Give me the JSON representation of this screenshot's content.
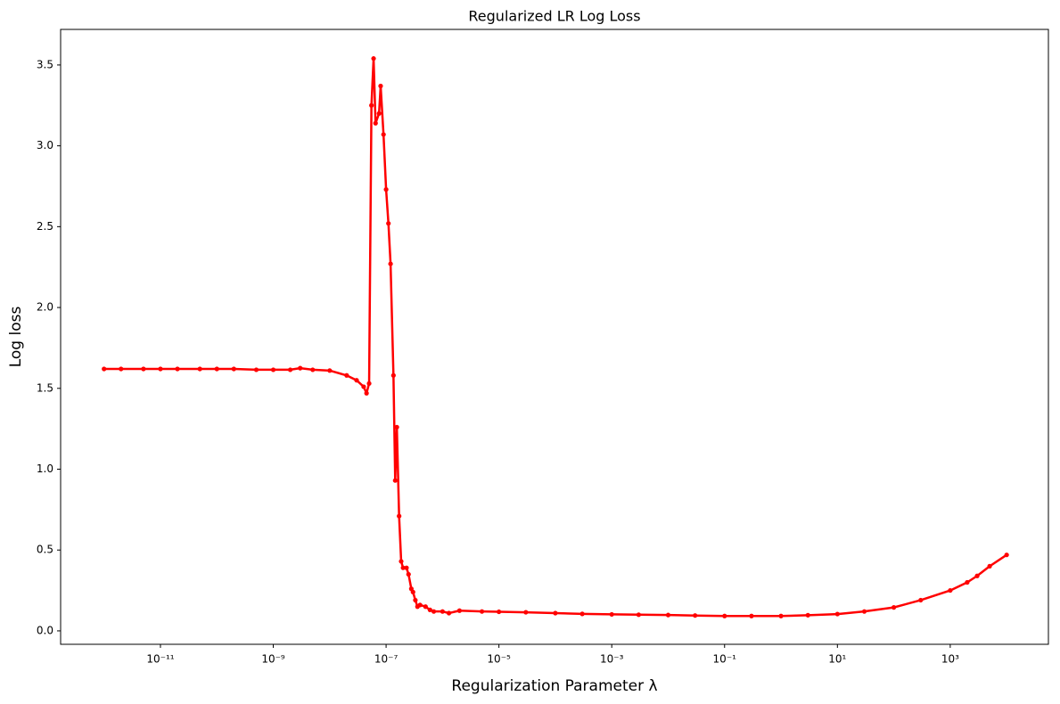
{
  "chart_data": {
    "type": "line",
    "title": "Regularized LR Log Loss",
    "x_label": "Regularization Parameter λ",
    "y_label": "Log loss",
    "x": [
      1e-12,
      2e-12,
      5e-12,
      1e-11,
      2e-11,
      5e-11,
      1e-10,
      2e-10,
      5e-10,
      1e-09,
      2e-09,
      3e-09,
      5e-09,
      1e-08,
      2e-08,
      3e-08,
      4e-08,
      4.5e-08,
      5e-08,
      5.5e-08,
      6e-08,
      6.5e-08,
      7.5e-08,
      8e-08,
      9e-08,
      1e-07,
      1.1e-07,
      1.2e-07,
      1.35e-07,
      1.45e-07,
      1.55e-07,
      1.7e-07,
      1.85e-07,
      2e-07,
      2.3e-07,
      2.5e-07,
      2.8e-07,
      3e-07,
      3.3e-07,
      3.6e-07,
      4e-07,
      5e-07,
      6e-07,
      7e-07,
      1e-06,
      1.3e-06,
      2e-06,
      5e-06,
      1e-05,
      3e-05,
      0.0001,
      0.0003,
      0.001,
      0.003,
      0.01,
      0.03,
      0.1,
      0.3,
      1,
      3,
      10,
      30,
      100,
      300,
      1000,
      2000,
      3000,
      5000,
      10000
    ],
    "values": [
      1.62,
      1.62,
      1.62,
      1.62,
      1.62,
      1.62,
      1.62,
      1.62,
      1.615,
      1.615,
      1.615,
      1.625,
      1.615,
      1.61,
      1.58,
      1.55,
      1.51,
      1.47,
      1.53,
      3.25,
      3.54,
      3.14,
      3.2,
      3.37,
      3.07,
      2.73,
      2.52,
      2.27,
      1.58,
      0.93,
      1.26,
      0.71,
      0.43,
      0.39,
      0.39,
      0.35,
      0.26,
      0.24,
      0.19,
      0.15,
      0.16,
      0.15,
      0.13,
      0.12,
      0.12,
      0.11,
      0.125,
      0.12,
      0.118,
      0.115,
      0.11,
      0.105,
      0.102,
      0.1,
      0.098,
      0.095,
      0.092,
      0.092,
      0.092,
      0.097,
      0.104,
      0.12,
      0.145,
      0.19,
      0.25,
      0.3,
      0.34,
      0.4,
      0.47
    ],
    "color": "#ff0000",
    "xscale": "log",
    "xlim": [
      1.7e-13,
      55000
    ],
    "ylim": [
      -0.083,
      3.72
    ],
    "xticks": [
      {
        "value": 1e-11,
        "label": "10⁻¹¹"
      },
      {
        "value": 1e-09,
        "label": "10⁻⁹"
      },
      {
        "value": 1e-07,
        "label": "10⁻⁷"
      },
      {
        "value": 1e-05,
        "label": "10⁻⁵"
      },
      {
        "value": 0.001,
        "label": "10⁻³"
      },
      {
        "value": 0.1,
        "label": "10⁻¹"
      },
      {
        "value": 10,
        "label": "10¹"
      },
      {
        "value": 1000,
        "label": "10³"
      }
    ],
    "yticks": [
      {
        "value": 0,
        "label": "0.0"
      },
      0.5,
      {
        "value": 1,
        "label": "1.0"
      },
      1.5,
      {
        "value": 2,
        "label": "2.0"
      },
      2.5,
      {
        "value": 3,
        "label": "3.0"
      },
      3.5
    ]
  }
}
